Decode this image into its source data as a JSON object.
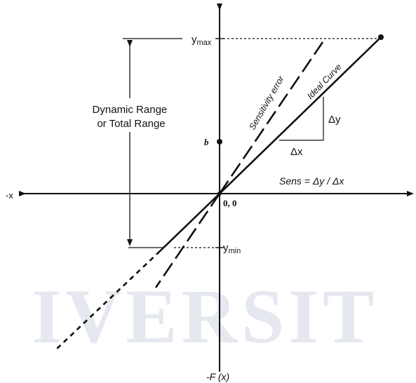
{
  "watermark": "IVERSIT",
  "axes": {
    "neg_x_label": "-x",
    "neg_y_label": "-F (x)",
    "origin_label": "0, 0",
    "b_label": "b"
  },
  "levels": {
    "ymax_label": "y",
    "ymax_sub": "max",
    "ymin_label": "y",
    "ymin_sub": "min"
  },
  "range_label": [
    "Dynamic Range",
    "or Total Range"
  ],
  "curves": {
    "sensitivity_error": "Sensitivity error",
    "ideal_curve": "Ideal Curve"
  },
  "deltas": {
    "dy": "Δy",
    "dx": "Δx"
  },
  "sensitivity_formula": "Sens = Δy / Δx"
}
